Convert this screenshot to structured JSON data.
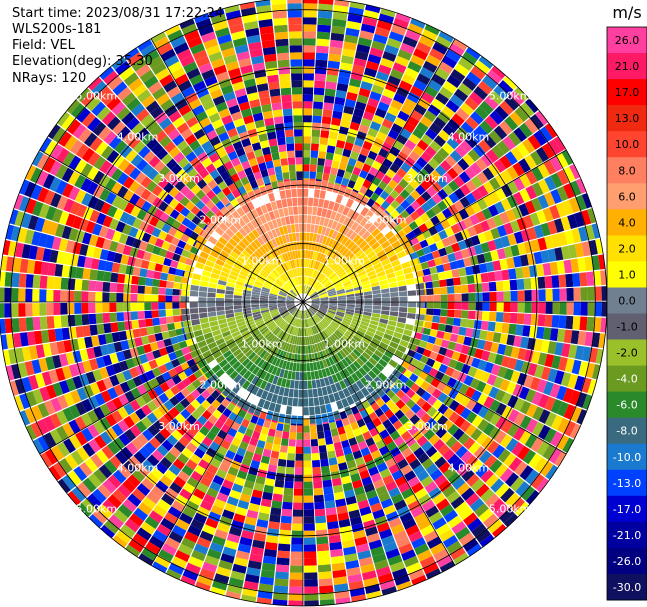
{
  "header": {
    "start_time": "Start time: 2023/08/31 17:22:24",
    "instrument": "WLS200s-181",
    "field": "Field: VEL",
    "elevation": "Elevation(deg): 35.30",
    "nrays": "NRays: 120"
  },
  "chart_data": {
    "type": "heatmap",
    "projection": "polar PPI",
    "field": "VEL",
    "nrays": 120,
    "elevation_deg": 35.3,
    "unit": "m/s",
    "range_rings_km": [
      1.0,
      2.0,
      3.0,
      4.0,
      5.0
    ],
    "range_ring_labels": [
      "1.00km",
      "2.00km",
      "3.00km",
      "4.00km",
      "5.00km"
    ],
    "max_range_km": 5.2,
    "spokes_deg": [
      0,
      30,
      60,
      90,
      120,
      150,
      180,
      210,
      240,
      270,
      300,
      330
    ],
    "colorbar_ticks": [
      "26.0",
      "21.0",
      "17.0",
      "13.0",
      "10.0",
      "8.0",
      "6.0",
      "4.0",
      "2.0",
      "1.0",
      "0.0",
      "-1.0",
      "-2.0",
      "-4.0",
      "-6.0",
      "-8.0",
      "-10.0",
      "-13.0",
      "-17.0",
      "-21.0",
      "-26.0",
      "-30.0"
    ],
    "colorbar_colors": [
      "#ff40a0",
      "#ff1a66",
      "#ff0000",
      "#f02a10",
      "#ff4530",
      "#ff8060",
      "#ff9f70",
      "#ffb000",
      "#ffe000",
      "#ffff00",
      "#708090",
      "#606070",
      "#9ac02a",
      "#6a9a20",
      "#2a8a2a",
      "#3a6a80",
      "#1a7ad0",
      "#0040ff",
      "#0000d0",
      "#0000a0",
      "#000080",
      "#101060"
    ],
    "structure": {
      "valid_data_range_km": 2.1,
      "near_field": "positive velocities (yellow to orange) to the north, near-zero (gray) along the east-west axis, negative velocities (green to blue) to the south",
      "far_field": "speckled noise across all colors beyond about 2.1 km"
    }
  }
}
